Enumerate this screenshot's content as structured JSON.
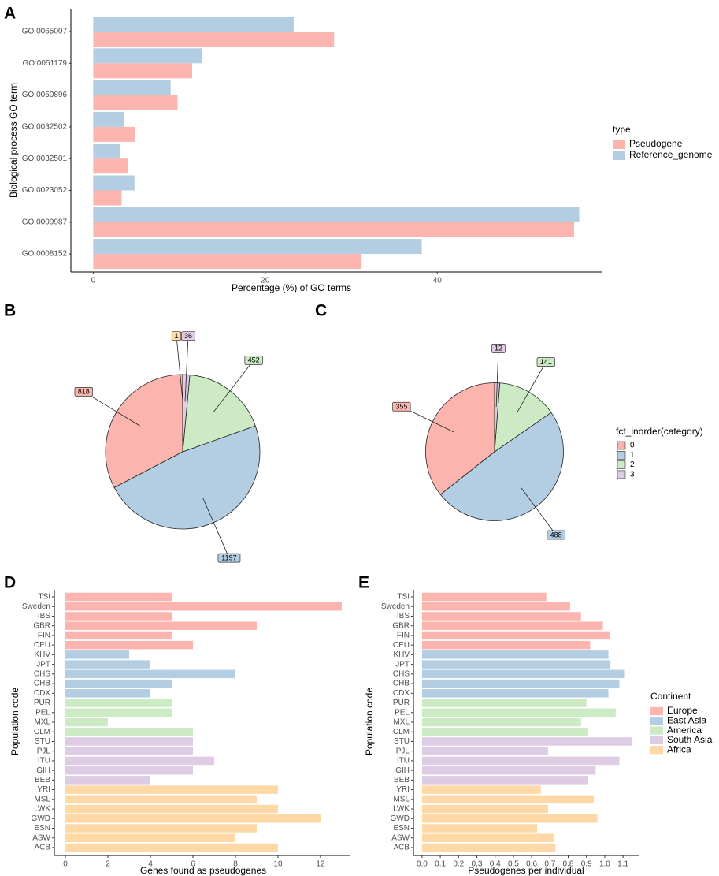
{
  "chart_data": [
    {
      "type": "bar",
      "panel": "A",
      "categories": [
        "GO:0065007",
        "GO:0051179",
        "GO:0050896",
        "GO:0032502",
        "GO:0032501",
        "GO:0023052",
        "GO:0009987",
        "GO:0008152"
      ],
      "series": [
        {
          "name": "Pseudogene",
          "color": "#fbb4ae",
          "values": [
            28.0,
            11.5,
            9.8,
            4.9,
            4.0,
            3.3,
            55.9,
            31.2
          ]
        },
        {
          "name": "Reference_genome",
          "color": "#b3cde3",
          "values": [
            23.3,
            12.6,
            9.0,
            3.6,
            3.1,
            4.8,
            56.5,
            38.2
          ]
        }
      ],
      "xlim": [
        -2.6,
        59.2
      ],
      "xticks": [
        0,
        20,
        40
      ],
      "xlabel": "Percentage (%) of GO terms",
      "ylabel": "Biological process GO term",
      "legend_title": "type",
      "legend": "right"
    },
    {
      "type": "pie",
      "panel": "B",
      "values": [
        818,
        1197,
        452,
        36,
        1
      ],
      "colors": [
        "#fbb4ae",
        "#b3cde3",
        "#ccebc5",
        "#decbe4",
        "#fed9a6"
      ]
    },
    {
      "type": "pie",
      "panel": "C",
      "categories": [
        "0",
        "1",
        "2",
        "3"
      ],
      "values": [
        355,
        488,
        141,
        12
      ],
      "colors": [
        "#fbb4ae",
        "#b3cde3",
        "#ccebc5",
        "#decbe4"
      ],
      "legend_title": "fct_inorder(category)",
      "legend": "right"
    },
    {
      "type": "bar",
      "panel": "D",
      "categories": [
        "TSI",
        "Sweden",
        "IBS",
        "GBR",
        "FIN",
        "CEU",
        "KHV",
        "JPT",
        "CHS",
        "CHB",
        "CDX",
        "PUR",
        "PEL",
        "MXL",
        "CLM",
        "STU",
        "PJL",
        "ITU",
        "GIH",
        "BEB",
        "YRI",
        "MSL",
        "LWK",
        "GWD",
        "ESN",
        "ASW",
        "ACB"
      ],
      "series": [
        {
          "name": "Europe",
          "color": "#fbb4ae",
          "values": [
            5,
            13,
            5,
            9,
            5,
            6,
            null,
            null,
            null,
            null,
            null,
            null,
            null,
            null,
            null,
            null,
            null,
            null,
            null,
            null,
            null,
            null,
            null,
            null,
            null,
            null,
            null
          ]
        },
        {
          "name": "East Asia",
          "color": "#b3cde3",
          "values": [
            null,
            null,
            null,
            null,
            null,
            null,
            3,
            4,
            8,
            5,
            4,
            null,
            null,
            null,
            null,
            null,
            null,
            null,
            null,
            null,
            null,
            null,
            null,
            null,
            null,
            null,
            null
          ]
        },
        {
          "name": "America",
          "color": "#ccebc5",
          "values": [
            null,
            null,
            null,
            null,
            null,
            null,
            null,
            null,
            null,
            null,
            null,
            5,
            5,
            2,
            6,
            null,
            null,
            null,
            null,
            null,
            null,
            null,
            null,
            null,
            null,
            null,
            null
          ]
        },
        {
          "name": "South Asia",
          "color": "#decbe4",
          "values": [
            null,
            null,
            null,
            null,
            null,
            null,
            null,
            null,
            null,
            null,
            null,
            null,
            null,
            null,
            null,
            6,
            6,
            7,
            6,
            4,
            null,
            null,
            null,
            null,
            null,
            null,
            null
          ]
        },
        {
          "name": "Africa",
          "color": "#fed9a6",
          "values": [
            null,
            null,
            null,
            null,
            null,
            null,
            null,
            null,
            null,
            null,
            null,
            null,
            null,
            null,
            null,
            null,
            null,
            null,
            null,
            null,
            10,
            9,
            10,
            12,
            9,
            8,
            10
          ]
        }
      ],
      "xlim": [
        -0.52,
        13.41
      ],
      "xticks": [
        0,
        2,
        4,
        6,
        8,
        10,
        12
      ],
      "xlabel": "Genes found as pseudogenes",
      "ylabel": "Population code"
    },
    {
      "type": "bar",
      "panel": "E",
      "categories": [
        "TSI",
        "Sweden",
        "IBS",
        "GBR",
        "FIN",
        "CEU",
        "KHV",
        "JPT",
        "CHS",
        "CHB",
        "CDX",
        "PUR",
        "PEL",
        "MXL",
        "CLM",
        "STU",
        "PJL",
        "ITU",
        "GIH",
        "BEB",
        "YRI",
        "MSL",
        "LWK",
        "GWD",
        "ESN",
        "ASW",
        "ACB"
      ],
      "series": [
        {
          "name": "Europe",
          "color": "#fbb4ae",
          "values": [
            0.68,
            0.81,
            0.87,
            0.99,
            1.03,
            0.92,
            null,
            null,
            null,
            null,
            null,
            null,
            null,
            null,
            null,
            null,
            null,
            null,
            null,
            null,
            null,
            null,
            null,
            null,
            null,
            null,
            null
          ]
        },
        {
          "name": "East Asia",
          "color": "#b3cde3",
          "values": [
            null,
            null,
            null,
            null,
            null,
            null,
            1.02,
            1.03,
            1.11,
            1.08,
            1.02,
            null,
            null,
            null,
            null,
            null,
            null,
            null,
            null,
            null,
            null,
            null,
            null,
            null,
            null,
            null,
            null
          ]
        },
        {
          "name": "America",
          "color": "#ccebc5",
          "values": [
            null,
            null,
            null,
            null,
            null,
            null,
            null,
            null,
            null,
            null,
            null,
            0.9,
            1.06,
            0.87,
            0.91,
            null,
            null,
            null,
            null,
            null,
            null,
            null,
            null,
            null,
            null,
            null,
            null
          ]
        },
        {
          "name": "South Asia",
          "color": "#decbe4",
          "values": [
            null,
            null,
            null,
            null,
            null,
            null,
            null,
            null,
            null,
            null,
            null,
            null,
            null,
            null,
            null,
            1.15,
            0.69,
            1.08,
            0.95,
            0.91,
            null,
            null,
            null,
            null,
            null,
            null,
            null
          ]
        },
        {
          "name": "Africa",
          "color": "#fed9a6",
          "values": [
            null,
            null,
            null,
            null,
            null,
            null,
            null,
            null,
            null,
            null,
            null,
            null,
            null,
            null,
            null,
            null,
            null,
            null,
            null,
            null,
            0.65,
            0.94,
            0.69,
            0.96,
            0.63,
            0.72,
            0.73
          ]
        }
      ],
      "xlim": [
        -0.047,
        1.19
      ],
      "xticks": [
        {
          "value": 0,
          "label": "0.0"
        },
        0.1,
        0.2,
        0.3,
        0.4,
        0.5,
        0.6,
        0.7,
        0.8,
        0.9,
        {
          "value": 1,
          "label": "1.0"
        },
        1.1
      ],
      "xlabel": "Pseudogenes per individual",
      "ylabel": "Population code",
      "legend_title": "Continent",
      "legend": "right"
    }
  ]
}
